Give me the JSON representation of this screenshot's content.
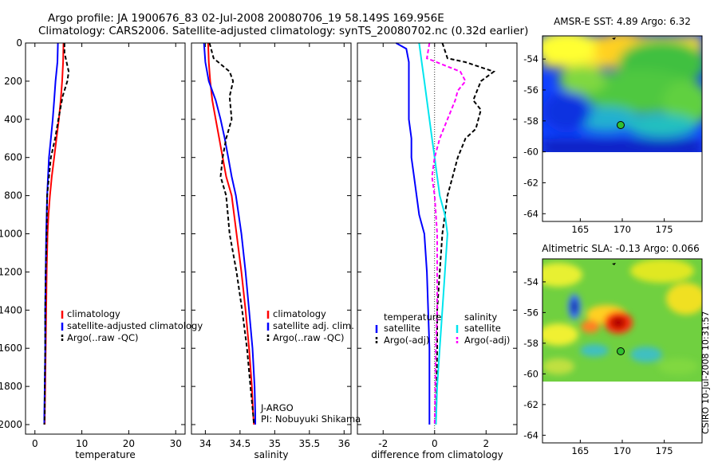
{
  "header": {
    "line1": "Argo profile: JA 1900676_83 02-Jul-2008 20080706_19 58.149S 169.956E",
    "line2": "Climatology: CARS2006. Satellite-adjusted climatology: synTS_20080702.nc (0.32d earlier)"
  },
  "side_label": "CSIRO 10-Jul-2008 10:31:57",
  "colors": {
    "climatology": "#ff0000",
    "satellite": "#0000ff",
    "argo": "#000000",
    "sat_sal_diff": "#00e5ee",
    "argo_sal_diff": "#ff00ff"
  },
  "chart_data": [
    {
      "type": "line",
      "id": "temperature",
      "xlabel": "temperature",
      "ylabel": "",
      "xlim": [
        -2,
        32
      ],
      "ylim": [
        2050,
        0
      ],
      "grid": false,
      "xticks": [
        0,
        10,
        20,
        30
      ],
      "yticks": [
        0,
        200,
        400,
        600,
        800,
        1000,
        1200,
        1400,
        1600,
        1800,
        2000
      ],
      "legend": {
        "position": "bottom-right",
        "entries": [
          {
            "label": "climatology",
            "color": "#ff0000",
            "style": "solid"
          },
          {
            "label": "satellite-adjusted climatology",
            "color": "#0000ff",
            "style": "solid"
          },
          {
            "label": "Argo(..raw -QC)",
            "color": "#000000",
            "style": "dashed"
          }
        ]
      },
      "series": [
        {
          "name": "climatology",
          "color": "#ff0000",
          "dash": "",
          "x": [
            6.1,
            6.0,
            5.8,
            5.5,
            5.1,
            4.6,
            4.1,
            3.6,
            3.2,
            2.9,
            2.7,
            2.5,
            2.4,
            2.3,
            2.2,
            2.1,
            2.1
          ],
          "y": [
            0,
            100,
            200,
            300,
            400,
            500,
            600,
            700,
            800,
            900,
            1000,
            1200,
            1400,
            1600,
            1800,
            1950,
            2000
          ]
        },
        {
          "name": "satellite-adjusted climatology",
          "color": "#0000ff",
          "dash": "",
          "x": [
            4.9,
            4.8,
            4.4,
            4.1,
            3.8,
            3.4,
            3.0,
            2.8,
            2.6,
            2.4,
            2.3,
            2.2,
            2.2,
            2.1,
            2.0,
            2.0
          ],
          "y": [
            0,
            100,
            200,
            300,
            400,
            500,
            600,
            700,
            800,
            1000,
            1200,
            1400,
            1600,
            1800,
            1950,
            2000
          ]
        },
        {
          "name": "Argo(..raw -QC)",
          "color": "#000000",
          "dash": "5,3",
          "x": [
            6.3,
            6.3,
            7.2,
            6.9,
            5.9,
            5.0,
            4.3,
            3.4,
            3.0,
            2.6,
            2.5,
            2.3,
            2.2,
            2.2,
            2.1,
            2.1,
            2.0
          ],
          "y": [
            0,
            50,
            150,
            200,
            280,
            400,
            500,
            600,
            700,
            800,
            1000,
            1200,
            1400,
            1600,
            1800,
            1950,
            2000
          ]
        }
      ]
    },
    {
      "type": "line",
      "id": "salinity",
      "xlabel": "salinity",
      "ylabel": "",
      "xlim": [
        33.8,
        36.1
      ],
      "ylim": [
        2050,
        0
      ],
      "grid": false,
      "xticks": [
        34,
        34.5,
        35,
        35.5,
        36
      ],
      "legend": {
        "position": "bottom-right",
        "entries": [
          {
            "label": "climatology",
            "color": "#ff0000",
            "style": "solid"
          },
          {
            "label": "satellite adj. clim.",
            "color": "#0000ff",
            "style": "solid"
          },
          {
            "label": "Argo(..raw -QC)",
            "color": "#000000",
            "style": "dashed"
          }
        ]
      },
      "annotations": [
        "J-ARGO",
        "PI: Nobuyuki Shikama"
      ],
      "series": [
        {
          "name": "climatology",
          "color": "#ff0000",
          "dash": "",
          "x": [
            34.04,
            34.05,
            34.07,
            34.1,
            34.15,
            34.2,
            34.25,
            34.3,
            34.38,
            34.45,
            34.52,
            34.58,
            34.63,
            34.67,
            34.69,
            34.7
          ],
          "y": [
            0,
            100,
            200,
            300,
            400,
            500,
            600,
            700,
            800,
            1000,
            1200,
            1400,
            1600,
            1800,
            1950,
            2000
          ]
        },
        {
          "name": "satellite adj. clim.",
          "color": "#0000ff",
          "dash": "",
          "x": [
            33.98,
            34.0,
            34.05,
            34.15,
            34.22,
            34.28,
            34.33,
            34.38,
            34.44,
            34.52,
            34.58,
            34.63,
            34.68,
            34.71,
            34.72,
            34.72
          ],
          "y": [
            0,
            100,
            200,
            300,
            400,
            500,
            600,
            700,
            800,
            1000,
            1200,
            1400,
            1600,
            1800,
            1950,
            2000
          ]
        },
        {
          "name": "Argo(..raw -QC)",
          "color": "#000000",
          "dash": "5,3",
          "x": [
            34.06,
            34.12,
            34.35,
            34.4,
            34.35,
            34.38,
            34.3,
            34.25,
            34.22,
            34.3,
            34.35,
            34.45,
            34.53,
            34.6,
            34.65,
            34.69,
            34.7
          ],
          "y": [
            0,
            80,
            150,
            200,
            280,
            400,
            500,
            600,
            700,
            800,
            1000,
            1200,
            1400,
            1600,
            1800,
            1950,
            2000
          ]
        }
      ]
    },
    {
      "type": "line",
      "id": "difference",
      "xlabel": "difference from climatology",
      "ylabel": "",
      "xlim": [
        -3,
        3.2
      ],
      "ylim": [
        2050,
        0
      ],
      "grid": false,
      "xticks": [
        -2,
        0,
        2
      ],
      "zero_line": true,
      "legend": {
        "position": "bottom",
        "groups": [
          {
            "title": "temperature",
            "entries": [
              {
                "label": "satellite",
                "color": "#0000ff",
                "style": "solid"
              },
              {
                "label": "Argo(-adj)",
                "color": "#000000",
                "style": "dashed"
              }
            ]
          },
          {
            "title": "salinity",
            "entries": [
              {
                "label": "satellite",
                "color": "#00e5ee",
                "style": "solid"
              },
              {
                "label": "Argo(-adj)",
                "color": "#ff00ff",
                "style": "dashed"
              }
            ]
          }
        ]
      },
      "series": [
        {
          "name": "temperature satellite",
          "color": "#0000ff",
          "dash": "",
          "x": [
            -1.5,
            -1.1,
            -1.0,
            -1.0,
            -1.0,
            -1.0,
            -0.9,
            -0.9,
            -0.8,
            -0.7,
            -0.6,
            -0.4,
            -0.3,
            -0.25,
            -0.2,
            -0.2,
            -0.2
          ],
          "y": [
            0,
            30,
            100,
            200,
            300,
            400,
            500,
            600,
            700,
            800,
            900,
            1000,
            1200,
            1400,
            1600,
            1800,
            2000
          ]
        },
        {
          "name": "temperature Argo(-adj)",
          "color": "#000000",
          "dash": "5,3",
          "x": [
            0.3,
            0.5,
            1.2,
            2.3,
            1.8,
            1.5,
            1.8,
            1.6,
            1.2,
            0.9,
            0.7,
            0.5,
            0.3,
            0.2,
            0.1,
            0.1,
            0.05
          ],
          "y": [
            0,
            80,
            100,
            150,
            200,
            300,
            350,
            450,
            500,
            600,
            700,
            800,
            1000,
            1200,
            1400,
            1600,
            2000
          ]
        },
        {
          "name": "salinity satellite",
          "color": "#00e5ee",
          "dash": "",
          "x": [
            -0.6,
            -0.5,
            -0.4,
            -0.3,
            -0.2,
            -0.1,
            0.0,
            0.1,
            0.2,
            0.4,
            0.5,
            0.4,
            0.3,
            0.2,
            0.1,
            0.05
          ],
          "y": [
            0,
            100,
            200,
            300,
            400,
            500,
            600,
            700,
            800,
            900,
            1000,
            1200,
            1400,
            1600,
            1800,
            2000
          ]
        },
        {
          "name": "salinity Argo(-adj)",
          "color": "#ff00ff",
          "dash": "5,3",
          "x": [
            -0.2,
            -0.3,
            1.0,
            1.2,
            0.9,
            0.8,
            0.5,
            0.2,
            0.0,
            -0.1,
            0.0,
            0.1,
            0.1,
            0.1,
            0.05,
            0.0
          ],
          "y": [
            0,
            80,
            150,
            200,
            250,
            300,
            400,
            500,
            600,
            700,
            800,
            1000,
            1200,
            1400,
            1600,
            2000
          ]
        }
      ]
    },
    {
      "type": "heatmap",
      "id": "sst-map",
      "title": "AMSR-E SST: 4.89 Argo: 6.32",
      "xlim": [
        160.5,
        179.5
      ],
      "ylim": [
        -64.5,
        -52.5
      ],
      "xticks": [
        165,
        170,
        175
      ],
      "yticks": [
        -54,
        -56,
        -58,
        -60,
        -62,
        -64
      ],
      "data_extent_lat": [
        -60,
        -52.5
      ],
      "argo_marker": {
        "lon": 169.956,
        "lat": -58.149
      }
    },
    {
      "type": "heatmap",
      "id": "sla-map",
      "title": "Altimetric SLA: -0.13 Argo: 0.066",
      "xlim": [
        160.5,
        179.5
      ],
      "ylim": [
        -64.5,
        -52.5
      ],
      "xticks": [
        165,
        170,
        175
      ],
      "yticks": [
        -54,
        -56,
        -58,
        -60,
        -62,
        -64
      ],
      "data_extent_lat": [
        -60,
        -52.5
      ],
      "argo_marker": {
        "lon": 169.956,
        "lat": -58.149
      }
    }
  ]
}
